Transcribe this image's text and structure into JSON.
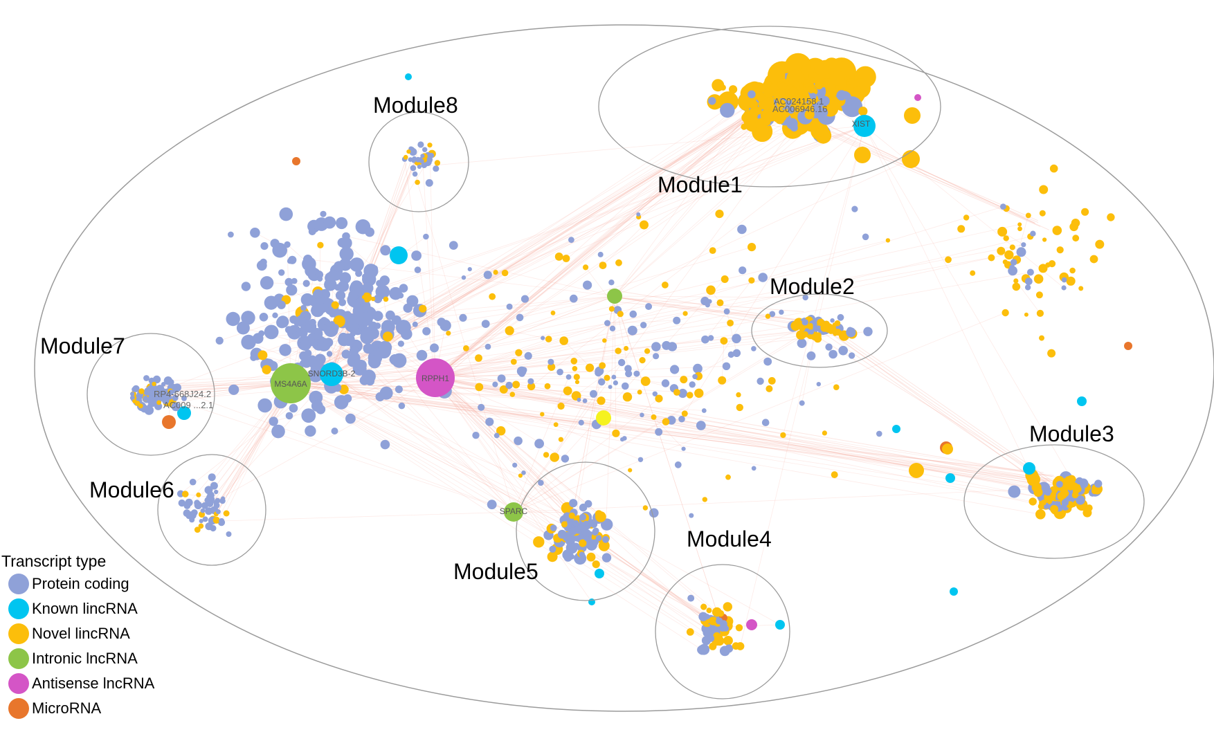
{
  "colors": {
    "protein_coding": "#8fa1d8",
    "known_lincrna": "#00c5f0",
    "novel_lincrna": "#fcbe0b",
    "intronic_lncrna": "#8dc548",
    "antisense_lncrna": "#d455c6",
    "microrna": "#e8762c",
    "edge": "#f5a696",
    "outline": "#9a9a9a"
  },
  "modules": [
    {
      "id": "module1",
      "label": "Module1"
    },
    {
      "id": "module2",
      "label": "Module2"
    },
    {
      "id": "module3",
      "label": "Module3"
    },
    {
      "id": "module4",
      "label": "Module4"
    },
    {
      "id": "module5",
      "label": "Module5"
    },
    {
      "id": "module6",
      "label": "Module6"
    },
    {
      "id": "module7",
      "label": "Module7"
    },
    {
      "id": "module8",
      "label": "Module8"
    }
  ],
  "hubs": [
    {
      "id": "ms4a6a",
      "label": "MS4A6A",
      "type": "intronic_lncrna"
    },
    {
      "id": "rpph1",
      "label": "RPPH1",
      "type": "antisense_lncrna"
    },
    {
      "id": "snord3b2",
      "label": "SNORD3B-2",
      "type": "known_lincrna"
    },
    {
      "id": "sparc",
      "label": "SPARC",
      "type": "intronic_lncrna"
    },
    {
      "id": "xist",
      "label": "XIST",
      "type": "known_lincrna"
    }
  ],
  "gene_labels": [
    {
      "id": "ac024158",
      "label": "AC024158.1"
    },
    {
      "id": "ac006946",
      "label": "AC006946.16"
    },
    {
      "id": "rp4",
      "label": "RP4-668J24.2"
    },
    {
      "id": "ac009",
      "label": "AC009 ...2.1"
    }
  ],
  "legend": {
    "title": "Transcript type",
    "items": [
      {
        "key": "protein_coding",
        "label": "Protein coding"
      },
      {
        "key": "known_lincrna",
        "label": "Known lincRNA"
      },
      {
        "key": "novel_lincrna",
        "label": "Novel lincRNA"
      },
      {
        "key": "intronic_lncrna",
        "label": "Intronic lncRNA"
      },
      {
        "key": "antisense_lncrna",
        "label": "Antisense lncRNA"
      },
      {
        "key": "microrna",
        "label": "MicroRNA"
      }
    ]
  }
}
